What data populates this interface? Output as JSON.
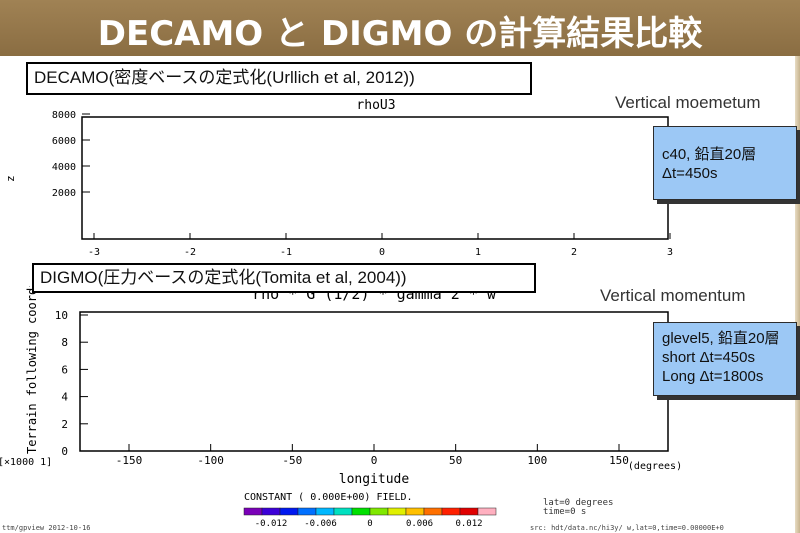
{
  "slide": {
    "title": "DECAMO と DIGMO の計算結果比較"
  },
  "top_panel": {
    "label": "DECAMO(密度ベースの定式化(Urllich et al, 2012))",
    "plot_title": "rhoU3",
    "side_note": "Vertical moemetum",
    "ylabel": "z",
    "info": {
      "line1": "c40, 鉛直20層",
      "line2": "Δt=450s"
    },
    "chart_data": {
      "type": "line",
      "title": "rhoU3",
      "ylabel": "z",
      "yticks": [
        "2000",
        "4000",
        "6000",
        "8000"
      ],
      "xticks": [
        "-3",
        "-2",
        "-1",
        "0",
        "1",
        "2",
        "3"
      ],
      "series": []
    }
  },
  "bottom_panel": {
    "label": "DIGMO(圧力ベースの定式化(Tomita et al, 2004))",
    "plot_title": "rho * G^(1/2) * gamma^2 * w",
    "side_note": "Vertical momentum",
    "ylabel": "Terrain following coordinate",
    "yscale": "[×1000 1]",
    "xlabel": "longitude",
    "xunit": "(degrees)",
    "info": {
      "line1": "glevel5, 鉛直20層",
      "line2": "short Δt=450s",
      "line3": "Long Δt=1800s"
    },
    "chart_data": {
      "type": "line",
      "title": "rho * G^(1/2) * gamma^2 * w",
      "xlabel": "longitude",
      "ylabel": "Terrain following coordinate",
      "xticks": [
        "-150",
        "-100",
        "-50",
        "0",
        "50",
        "100",
        "150"
      ],
      "yticks": [
        "0",
        "2",
        "4",
        "6",
        "8",
        "10"
      ],
      "series": []
    }
  },
  "colorbar": {
    "caption": "CONSTANT ( 0.000E+00) FIELD.",
    "ticks": [
      "-0.012",
      "-0.006",
      "0",
      "0.006",
      "0.012"
    ],
    "colors": [
      "#7a00b8",
      "#3c00d8",
      "#0018f0",
      "#0070ff",
      "#00b8ff",
      "#00e0c0",
      "#00e000",
      "#80e800",
      "#e0f000",
      "#ffc000",
      "#ff7000",
      "#ff2000",
      "#e00000",
      "#ffb0c0"
    ]
  },
  "meta_right": {
    "line1": "lat=0 degrees",
    "line2": "time=0 s"
  },
  "footer_left": "ttm/gpview  2012-10-16",
  "footer_right": "src: hdt/data.nc/hi3y/  w,lat=0,time=0.00000E+0"
}
